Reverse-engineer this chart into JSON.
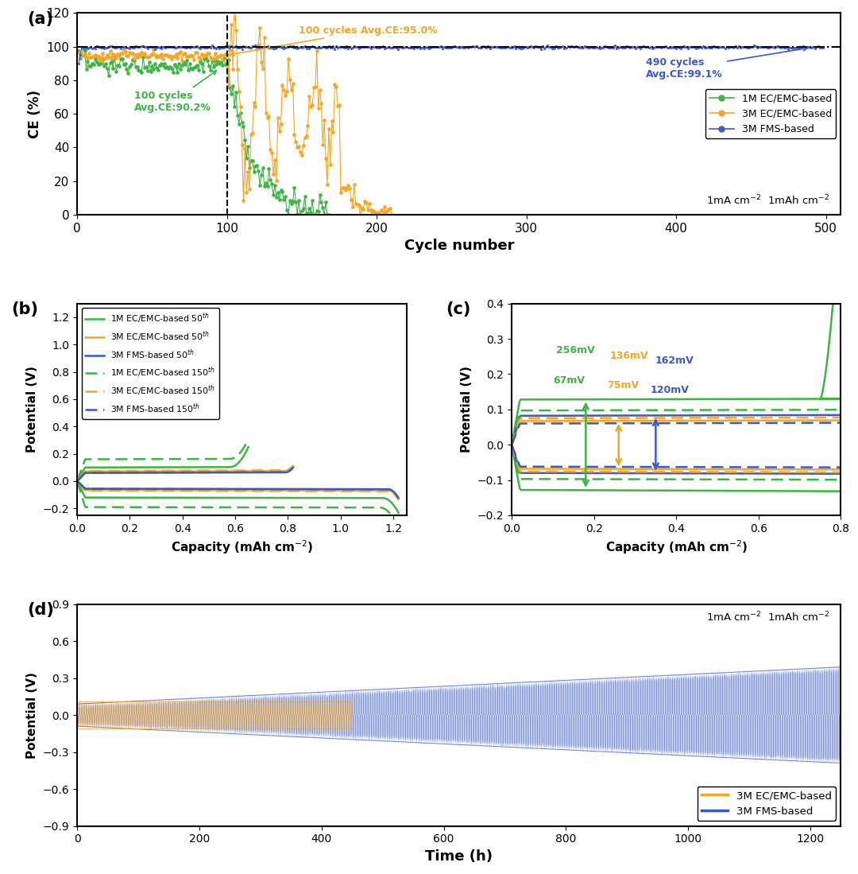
{
  "panel_a": {
    "ylabel": "CE (%)",
    "xlabel": "Cycle number",
    "ylim": [
      0,
      120
    ],
    "xlim": [
      0,
      510
    ],
    "yticks": [
      0,
      20,
      40,
      60,
      80,
      100,
      120
    ],
    "xticks": [
      0,
      100,
      200,
      300,
      400,
      500
    ]
  },
  "panel_b": {
    "ylabel": "Potential (V)",
    "xlabel": "Capacity (mAh cm$^{-2}$)",
    "ylim": [
      -0.25,
      1.3
    ],
    "xlim": [
      0.0,
      1.25
    ],
    "yticks": [
      -0.2,
      0.0,
      0.2,
      0.4,
      0.6,
      0.8,
      1.0,
      1.2
    ],
    "xticks": [
      0.0,
      0.2,
      0.4,
      0.6,
      0.8,
      1.0,
      1.2
    ]
  },
  "panel_c": {
    "ylabel": "Potential (V)",
    "xlabel": "Capacity (mAh cm$^{-2}$)",
    "ylim": [
      -0.2,
      0.4
    ],
    "xlim": [
      0.0,
      0.8
    ],
    "yticks": [
      -0.2,
      -0.1,
      0.0,
      0.1,
      0.2,
      0.3,
      0.4
    ],
    "xticks": [
      0.0,
      0.2,
      0.4,
      0.6,
      0.8
    ]
  },
  "panel_d": {
    "ylabel": "Potential (V)",
    "xlabel": "Time (h)",
    "ylim": [
      -0.9,
      0.9
    ],
    "xlim": [
      0,
      1250
    ],
    "yticks": [
      -0.9,
      -0.6,
      -0.3,
      0,
      0.3,
      0.6,
      0.9
    ],
    "xticks": [
      0,
      200,
      400,
      600,
      800,
      1000,
      1200
    ]
  },
  "green_color": "#3cb544",
  "orange_color": "#f5a623",
  "blue_color": "#3a5bc7",
  "label_a": "(a)",
  "label_b": "(b)",
  "label_c": "(c)",
  "label_d": "(d)"
}
